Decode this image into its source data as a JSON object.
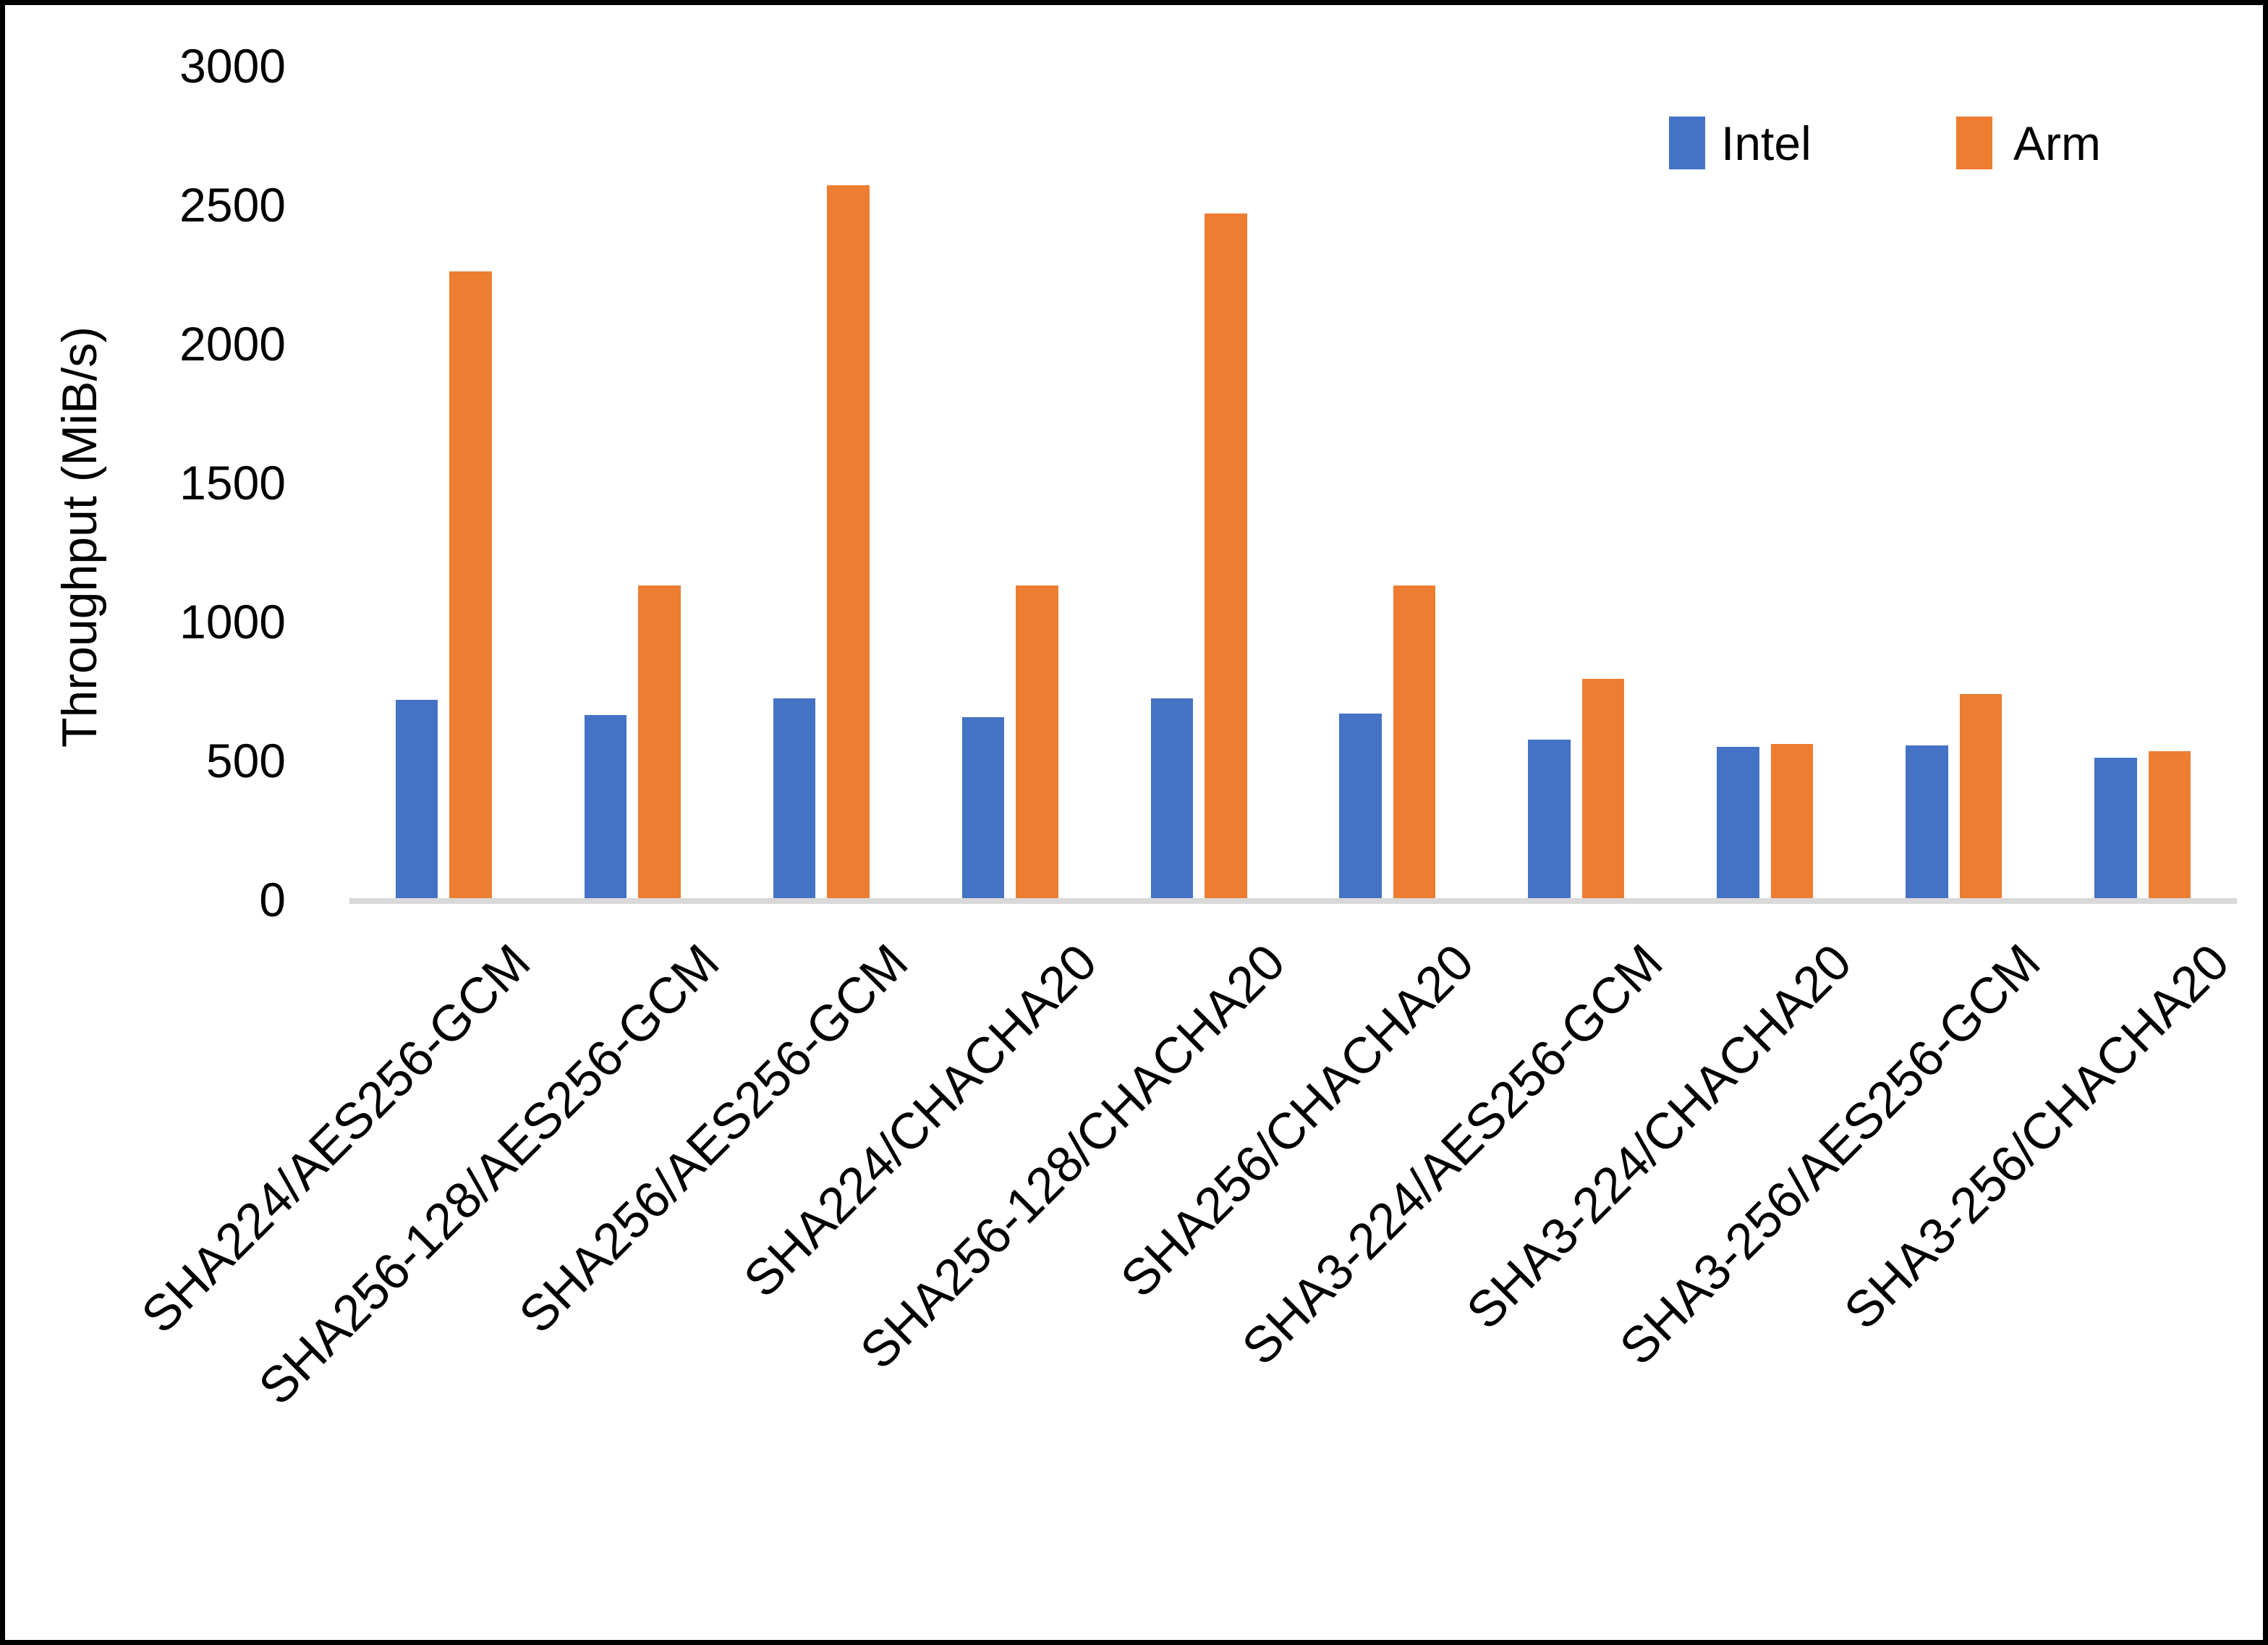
{
  "chart": {
    "y_axis_title": "Throughput (MiB/s)"
  },
  "chart_data": {
    "type": "bar",
    "title": "",
    "xlabel": "",
    "ylabel": "Throughput (MiB/s)",
    "ylim": [
      0,
      3000
    ],
    "ytick_step": 500,
    "ytick_labels": [
      "3000",
      "2500",
      "2000",
      "1500",
      "1000",
      "500",
      "0"
    ],
    "grid": false,
    "legend_position": "top-right",
    "categories": [
      "SHA224/AES256-GCM",
      "SHA256-128/AES256-GCM",
      "SHA256/AES256-GCM",
      "SHA224/CHACHA20",
      "SHA256-128/CHACHA20",
      "SHA256/CHACHA20",
      "SHA3-224/AES256-GCM",
      "SHA3-224/CHACHA20",
      "SHA3-256/AES256-GCM",
      "SHA3-256/CHACHA20"
    ],
    "series": [
      {
        "name": "Intel",
        "color": "#4472C4",
        "values": [
          720,
          665,
          725,
          655,
          725,
          670,
          575,
          550,
          555,
          510
        ]
      },
      {
        "name": "Arm",
        "color": "#ED7D31",
        "values": [
          2260,
          1130,
          2570,
          1130,
          2470,
          1130,
          795,
          560,
          740,
          535
        ]
      }
    ],
    "colors": {
      "intel_blue": "#4472C4",
      "arm_orange": "#ED7D31",
      "axis_gray": "#D9D9D9"
    }
  }
}
